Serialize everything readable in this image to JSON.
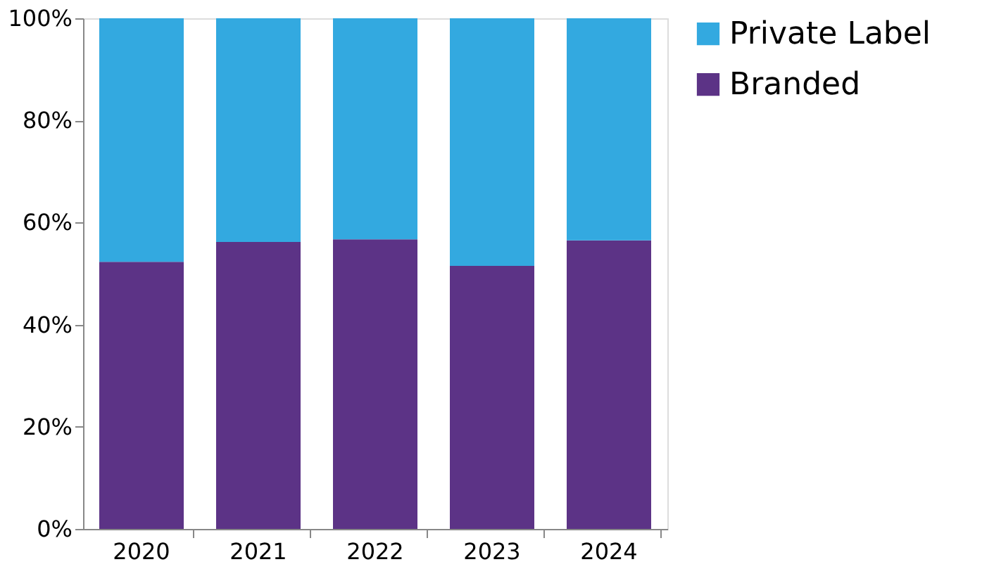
{
  "chart_data": {
    "type": "bar",
    "stacked": true,
    "categories": [
      "2020",
      "2021",
      "2022",
      "2023",
      "2024"
    ],
    "series": [
      {
        "name": "Branded",
        "color": "#5c3386",
        "values": [
          52.3,
          56.2,
          56.7,
          51.5,
          56.5
        ]
      },
      {
        "name": "Private Label",
        "color": "#33a9e0",
        "values": [
          47.7,
          43.8,
          43.3,
          48.5,
          43.5
        ]
      }
    ],
    "ylim": [
      0,
      100
    ],
    "yticks": [
      {
        "value": 0,
        "label": "0%"
      },
      {
        "value": 20,
        "label": "20%"
      },
      {
        "value": 40,
        "label": "40%"
      },
      {
        "value": 60,
        "label": "60%"
      },
      {
        "value": 80,
        "label": "80%"
      },
      {
        "value": 100,
        "label": "100%"
      }
    ],
    "grid": false,
    "legend": "right"
  }
}
